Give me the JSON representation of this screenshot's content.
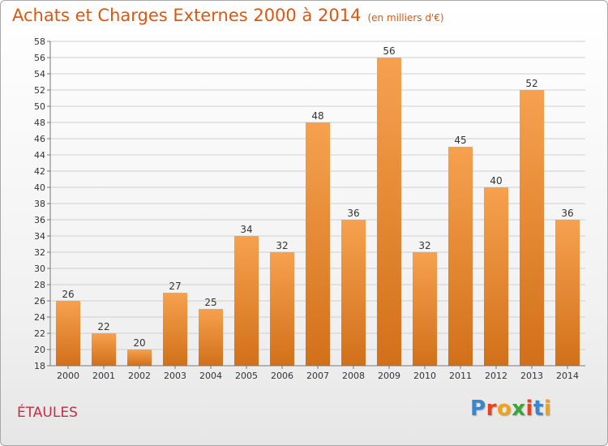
{
  "title": "Achats et Charges Externes 2000 à 2014",
  "subtitle": "(en milliers d'€)",
  "location": "ÉTAULES",
  "brand": {
    "name": "Proxiti",
    "letters": [
      {
        "ch": "P",
        "color": "#3b86c8"
      },
      {
        "ch": "r",
        "color": "#e8431f"
      },
      {
        "ch": "o",
        "color": "#f0a31a"
      },
      {
        "ch": "x",
        "color": "#3aa63a"
      },
      {
        "ch": "i",
        "color": "#e8431f"
      },
      {
        "ch": "t",
        "color": "#3b86c8"
      },
      {
        "ch": "i",
        "color": "#f0a31a"
      }
    ]
  },
  "colors": {
    "bar_top": "#f6a14f",
    "bar_bottom": "#d2701a",
    "grid": "#cfcfcf",
    "axis": "#777777",
    "text": "#333333"
  },
  "chart_data": {
    "type": "bar",
    "categories": [
      "2000",
      "2001",
      "2002",
      "2003",
      "2004",
      "2005",
      "2006",
      "2007",
      "2008",
      "2009",
      "2010",
      "2011",
      "2012",
      "2013",
      "2014"
    ],
    "values": [
      26,
      22,
      20,
      27,
      25,
      34,
      32,
      48,
      36,
      56,
      32,
      45,
      40,
      52,
      36
    ],
    "ylim": [
      18,
      58
    ],
    "yticks": [
      18,
      20,
      22,
      24,
      26,
      28,
      30,
      32,
      34,
      36,
      38,
      40,
      42,
      44,
      46,
      48,
      50,
      52,
      54,
      56,
      58
    ],
    "grid": true,
    "data_labels": true
  }
}
